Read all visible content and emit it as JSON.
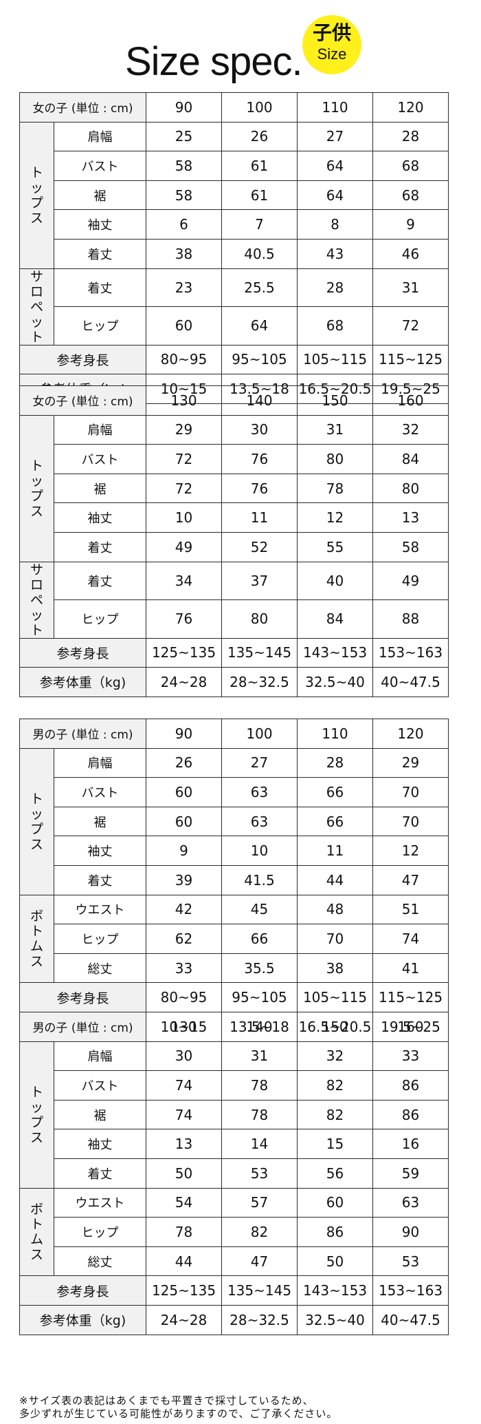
{
  "header": {
    "title": "Size spec.",
    "badge_line1": "子供",
    "badge_line2": "Size"
  },
  "labels": {
    "tops_group": "トップス",
    "salopette_group": "サロペット",
    "bottoms_group": "ボトムス",
    "ref_height": "参考身長",
    "ref_weight": "参考体重（kg)"
  },
  "tables": [
    {
      "header_label": "女の子 (単位 : cm)",
      "sizes": [
        "90",
        "100",
        "110",
        "120"
      ],
      "group1": [
        {
          "label": "肩幅",
          "values": [
            "25",
            "26",
            "27",
            "28"
          ]
        },
        {
          "label": "バスト",
          "values": [
            "58",
            "61",
            "64",
            "68"
          ]
        },
        {
          "label": "裾",
          "values": [
            "58",
            "61",
            "64",
            "68"
          ]
        },
        {
          "label": "袖丈",
          "values": [
            "6",
            "7",
            "8",
            "9"
          ]
        },
        {
          "label": "着丈",
          "values": [
            "38",
            "40.5",
            "43",
            "46"
          ]
        }
      ],
      "group2": [
        {
          "label": "着丈",
          "values": [
            "23",
            "25.5",
            "28",
            "31"
          ]
        },
        {
          "label": "ヒップ",
          "values": [
            "60",
            "64",
            "68",
            "72"
          ]
        }
      ],
      "height": [
        "80~95",
        "95~105",
        "105~115",
        "115~125"
      ],
      "weight": [
        "10~15",
        "13.5~18",
        "16.5~20.5",
        "19.5~25"
      ]
    },
    {
      "header_label": "女の子 (単位 : cm)",
      "sizes": [
        "130",
        "140",
        "150",
        "160"
      ],
      "group1": [
        {
          "label": "肩幅",
          "values": [
            "29",
            "30",
            "31",
            "32"
          ]
        },
        {
          "label": "バスト",
          "values": [
            "72",
            "76",
            "80",
            "84"
          ]
        },
        {
          "label": "裾",
          "values": [
            "72",
            "76",
            "78",
            "80"
          ]
        },
        {
          "label": "袖丈",
          "values": [
            "10",
            "11",
            "12",
            "13"
          ]
        },
        {
          "label": "着丈",
          "values": [
            "49",
            "52",
            "55",
            "58"
          ]
        }
      ],
      "group2": [
        {
          "label": "着丈",
          "values": [
            "34",
            "37",
            "40",
            "49"
          ]
        },
        {
          "label": "ヒップ",
          "values": [
            "76",
            "80",
            "84",
            "88"
          ]
        }
      ],
      "height": [
        "125~135",
        "135~145",
        "143~153",
        "153~163"
      ],
      "weight": [
        "24~28",
        "28~32.5",
        "32.5~40",
        "40~47.5"
      ]
    },
    {
      "header_label": "男の子 (単位 : cm)",
      "sizes": [
        "90",
        "100",
        "110",
        "120"
      ],
      "group1": [
        {
          "label": "肩幅",
          "values": [
            "26",
            "27",
            "28",
            "29"
          ]
        },
        {
          "label": "バスト",
          "values": [
            "60",
            "63",
            "66",
            "70"
          ]
        },
        {
          "label": "裾",
          "values": [
            "60",
            "63",
            "66",
            "70"
          ]
        },
        {
          "label": "袖丈",
          "values": [
            "9",
            "10",
            "11",
            "12"
          ]
        },
        {
          "label": "着丈",
          "values": [
            "39",
            "41.5",
            "44",
            "47"
          ]
        }
      ],
      "group2": [
        {
          "label": "ウエスト",
          "values": [
            "42",
            "45",
            "48",
            "51"
          ]
        },
        {
          "label": "ヒップ",
          "values": [
            "62",
            "66",
            "70",
            "74"
          ]
        },
        {
          "label": "総丈",
          "values": [
            "33",
            "35.5",
            "38",
            "41"
          ]
        }
      ],
      "height": [
        "80~95",
        "95~105",
        "105~115",
        "115~125"
      ],
      "weight": [
        "10~15",
        "13.5~18",
        "16.5~20.5",
        "19.5~25"
      ]
    },
    {
      "header_label": "男の子 (単位 : cm)",
      "sizes": [
        "130",
        "140",
        "150",
        "160"
      ],
      "group1": [
        {
          "label": "肩幅",
          "values": [
            "30",
            "31",
            "32",
            "33"
          ]
        },
        {
          "label": "バスト",
          "values": [
            "74",
            "78",
            "82",
            "86"
          ]
        },
        {
          "label": "裾",
          "values": [
            "74",
            "78",
            "82",
            "86"
          ]
        },
        {
          "label": "袖丈",
          "values": [
            "13",
            "14",
            "15",
            "16"
          ]
        },
        {
          "label": "着丈",
          "values": [
            "50",
            "53",
            "56",
            "59"
          ]
        }
      ],
      "group2": [
        {
          "label": "ウエスト",
          "values": [
            "54",
            "57",
            "60",
            "63"
          ]
        },
        {
          "label": "ヒップ",
          "values": [
            "78",
            "82",
            "86",
            "90"
          ]
        },
        {
          "label": "総丈",
          "values": [
            "44",
            "47",
            "50",
            "53"
          ]
        }
      ],
      "height": [
        "125~135",
        "135~145",
        "143~153",
        "153~163"
      ],
      "weight": [
        "24~28",
        "28~32.5",
        "32.5~40",
        "40~47.5"
      ]
    }
  ],
  "footnote": {
    "line1": "※サイズ表の表記はあくまでも平置きで採寸しているため、",
    "line2": "多少ずれが生じている可能性がありますので、ご了承ください。"
  }
}
